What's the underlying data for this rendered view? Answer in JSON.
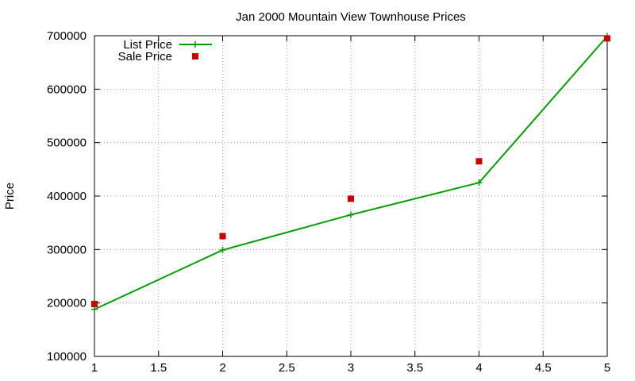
{
  "chart_data": {
    "type": "line",
    "title": "Jan 2000 Mountain View Townhouse Prices",
    "xlabel": "",
    "ylabel": "Price",
    "xlim": [
      1,
      5
    ],
    "ylim": [
      100000,
      700000
    ],
    "xticks": [
      1,
      1.5,
      2,
      2.5,
      3,
      3.5,
      4,
      4.5,
      5
    ],
    "xtick_labels": [
      "1",
      "1.5",
      "2",
      "2.5",
      "3",
      "3.5",
      "4",
      "4.5",
      "5"
    ],
    "yticks": [
      100000,
      200000,
      300000,
      400000,
      500000,
      600000,
      700000
    ],
    "ytick_labels": [
      "100000",
      "200000",
      "300000",
      "400000",
      "500000",
      "600000",
      "700000"
    ],
    "grid": true,
    "legend_position": "top-left",
    "series": [
      {
        "name": "List Price",
        "style": "lines+points",
        "marker": "plus",
        "color": "#009e00",
        "x": [
          1,
          2,
          3,
          4,
          5
        ],
        "values": [
          188000,
          299000,
          365000,
          425000,
          699000
        ]
      },
      {
        "name": "Sale Price",
        "style": "points",
        "marker": "square",
        "color": "#cc0000",
        "x": [
          1,
          2,
          3,
          4,
          5
        ],
        "values": [
          198000,
          325000,
          395000,
          465000,
          695000
        ]
      }
    ]
  }
}
